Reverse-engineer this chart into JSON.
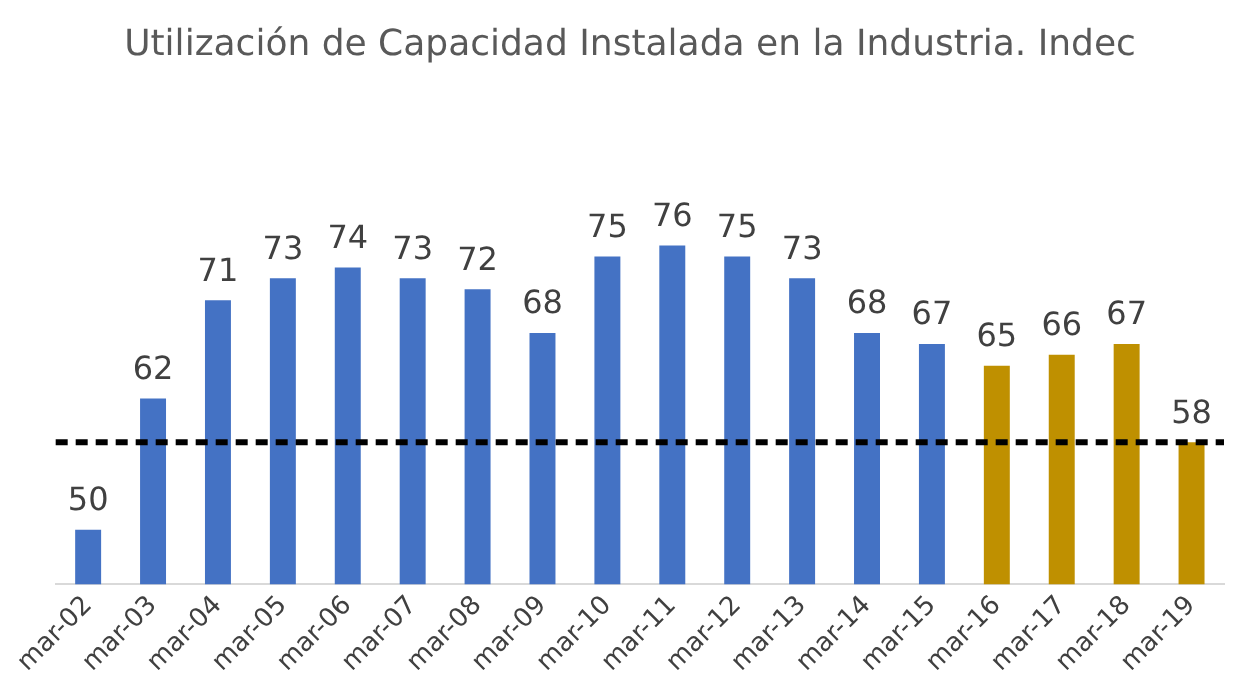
{
  "chart_data": {
    "type": "bar",
    "title": "Utilización de Capacidad Instalada en la Industria. Indec",
    "categories": [
      "mar-02",
      "mar-03",
      "mar-04",
      "mar-05",
      "mar-06",
      "mar-07",
      "mar-08",
      "mar-09",
      "mar-10",
      "mar-11",
      "mar-12",
      "mar-13",
      "mar-14",
      "mar-15",
      "mar-16",
      "mar-17",
      "mar-18",
      "mar-19"
    ],
    "values": [
      50,
      62,
      71,
      73,
      74,
      73,
      72,
      68,
      75,
      76,
      75,
      73,
      68,
      67,
      65,
      66,
      67,
      58
    ],
    "colors": [
      "#4472c4",
      "#4472c4",
      "#4472c4",
      "#4472c4",
      "#4472c4",
      "#4472c4",
      "#4472c4",
      "#4472c4",
      "#4472c4",
      "#4472c4",
      "#4472c4",
      "#4472c4",
      "#4472c4",
      "#4472c4",
      "#bf9000",
      "#bf9000",
      "#bf9000",
      "#bf9000"
    ],
    "data_labels": true,
    "grid": false,
    "legend": false,
    "ref_lines": [
      {
        "axis": "y",
        "value": 58,
        "color": "#000000",
        "line_style": "dashed"
      }
    ]
  }
}
